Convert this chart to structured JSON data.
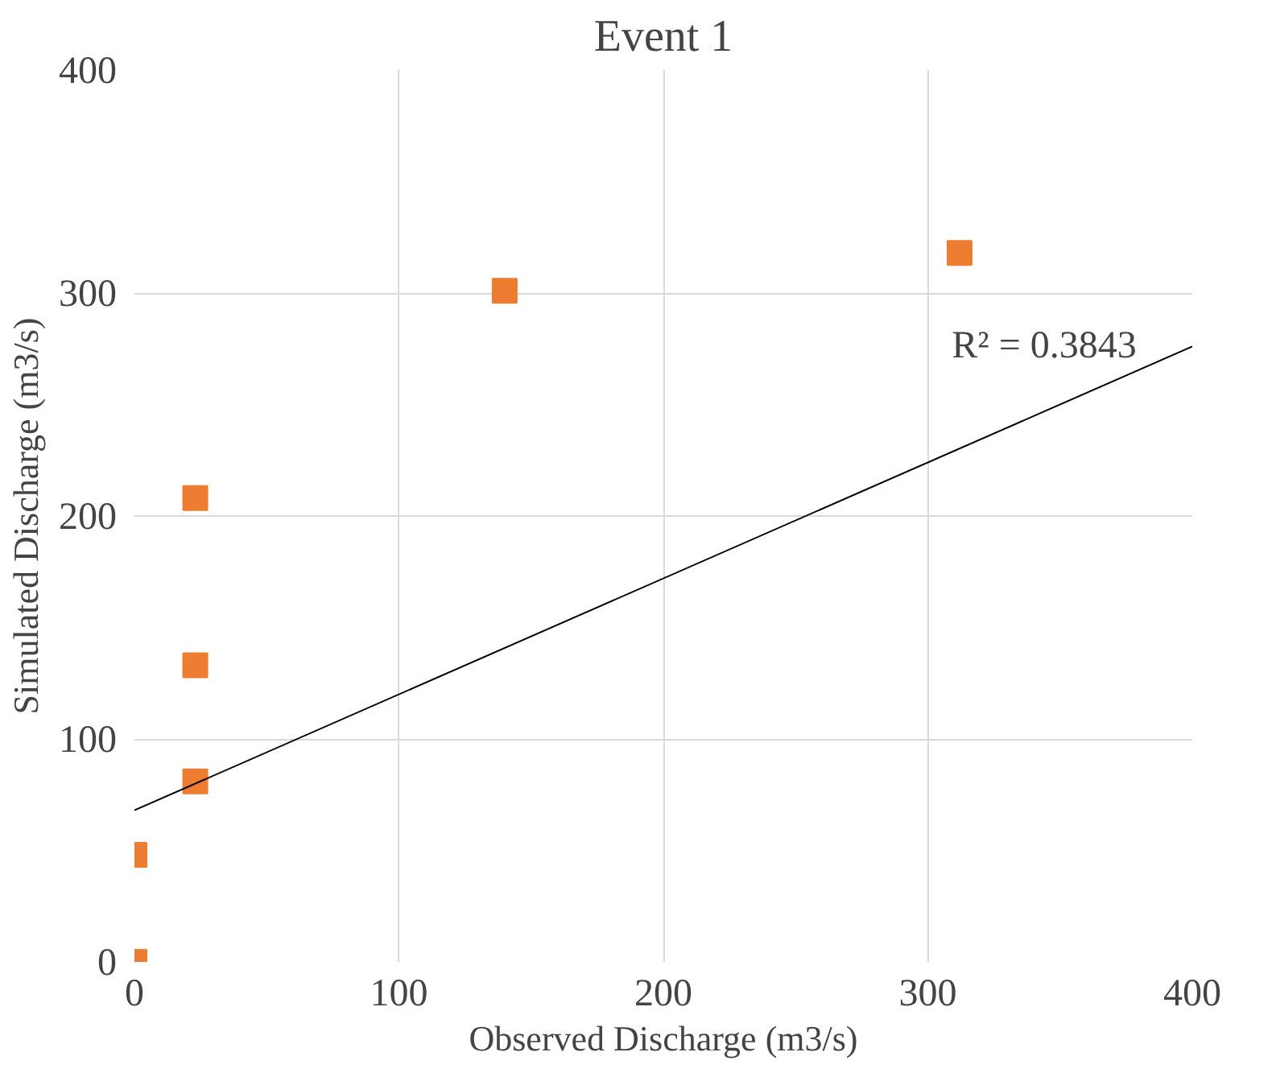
{
  "chart_data": {
    "type": "scatter",
    "title": "Event 1",
    "xlabel": "Observed Discharge (m3/s)",
    "ylabel": "Simulated Discharge (m3/s)",
    "xlim": [
      0,
      400
    ],
    "ylim": [
      0,
      400
    ],
    "xticks": [
      0,
      100,
      200,
      300,
      400
    ],
    "yticks": [
      0,
      100,
      200,
      300,
      400
    ],
    "grid": true,
    "marker": "square",
    "series": [
      {
        "color": "#ed7d31",
        "x": [
          0,
          0,
          23,
          23,
          23,
          140,
          312
        ],
        "values": [
          0,
          48,
          81,
          133,
          208,
          301,
          318
        ]
      },
      {
        "type": "line",
        "color": "#000000",
        "x": [
          0,
          400
        ],
        "values": [
          68,
          276
        ],
        "marker": "none",
        "line_style": "solid"
      }
    ],
    "annotations": [
      "R² = 0.3843"
    ]
  }
}
